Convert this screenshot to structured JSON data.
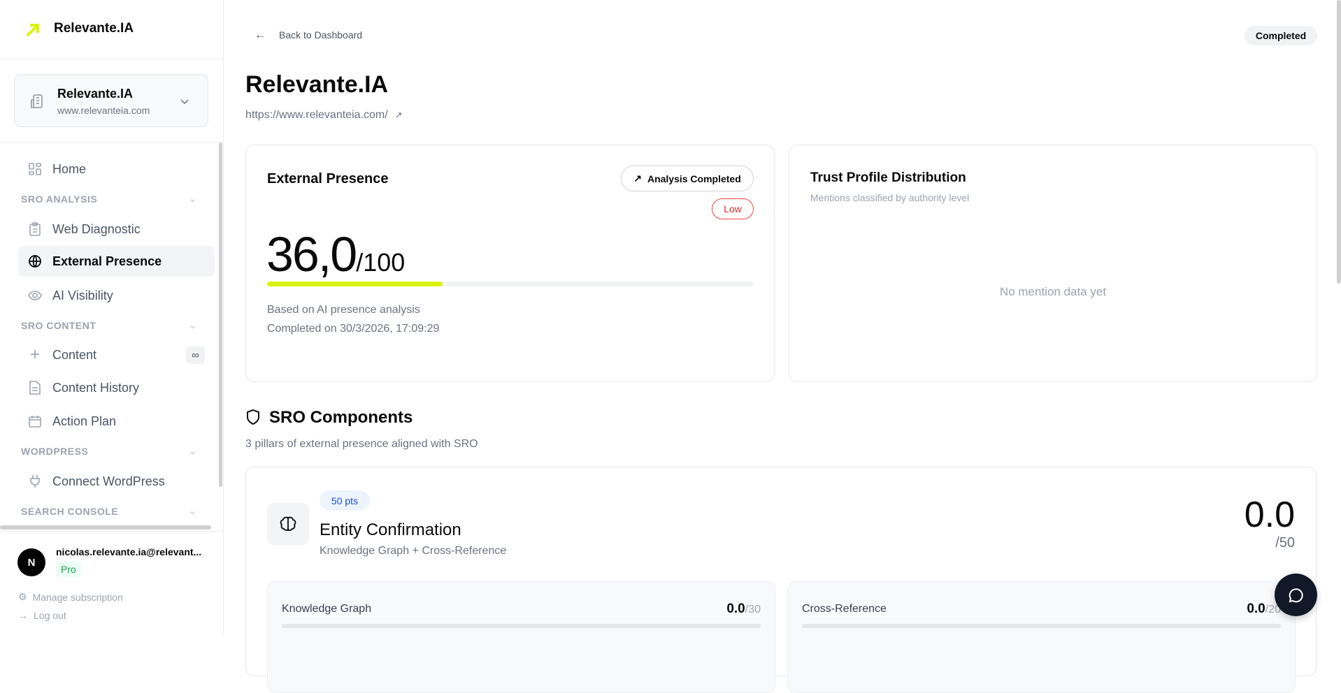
{
  "brand": {
    "name": "Relevante.IA",
    "accent": "#d9f20a"
  },
  "org": {
    "name": "Relevante.IA",
    "url": "www.relevanteia.com"
  },
  "nav": {
    "home": "Home",
    "sections": [
      "SRO ANALYSIS",
      "SRO CONTENT",
      "WORDPRESS",
      "SEARCH CONSOLE"
    ],
    "items": [
      {
        "label": "Web Diagnostic",
        "icon": "clipboard-icon"
      },
      {
        "label": "External Presence",
        "icon": "globe-icon",
        "active": true
      },
      {
        "label": "AI Visibility",
        "icon": "eye-icon"
      },
      {
        "label": "Content",
        "icon": "plus-icon",
        "badge": "∞"
      },
      {
        "label": "Content History",
        "icon": "file-text-icon"
      },
      {
        "label": "Action Plan",
        "icon": "calendar-icon"
      },
      {
        "label": "Connect WordPress",
        "icon": "plug-icon"
      }
    ]
  },
  "user": {
    "initial": "N",
    "email": "nicolas.relevante.ia@relevant...",
    "plan": "Pro",
    "manage": "Manage subscription",
    "logout": "Log out"
  },
  "header": {
    "back": "Back to Dashboard",
    "status": "Completed",
    "title": "Relevante.IA",
    "url": "https://www.relevanteia.com/"
  },
  "presence": {
    "title": "External Presence",
    "status": "Analysis Completed",
    "level": "Low",
    "score": "36,0",
    "max": "/100",
    "progress_percent": 36,
    "note": "Based on AI presence analysis",
    "completed": "Completed on 30/3/2026, 17:09:29"
  },
  "trust": {
    "title": "Trust Profile Distribution",
    "subtitle": "Mentions classified by authority level",
    "empty": "No mention data yet"
  },
  "components": {
    "title": "SRO Components",
    "subtitle": "3 pillars of external presence aligned with SRO"
  },
  "entity": {
    "pts": "50 pts",
    "title": "Entity Confirmation",
    "subtitle": "Knowledge Graph + Cross-Reference",
    "score": "0.0",
    "max": "/50",
    "subs": [
      {
        "label": "Knowledge Graph",
        "score": "0.0",
        "max": "/30",
        "progress_percent": 0
      },
      {
        "label": "Cross-Reference",
        "score": "0.0",
        "max": "/20",
        "progress_percent": 0
      }
    ]
  }
}
